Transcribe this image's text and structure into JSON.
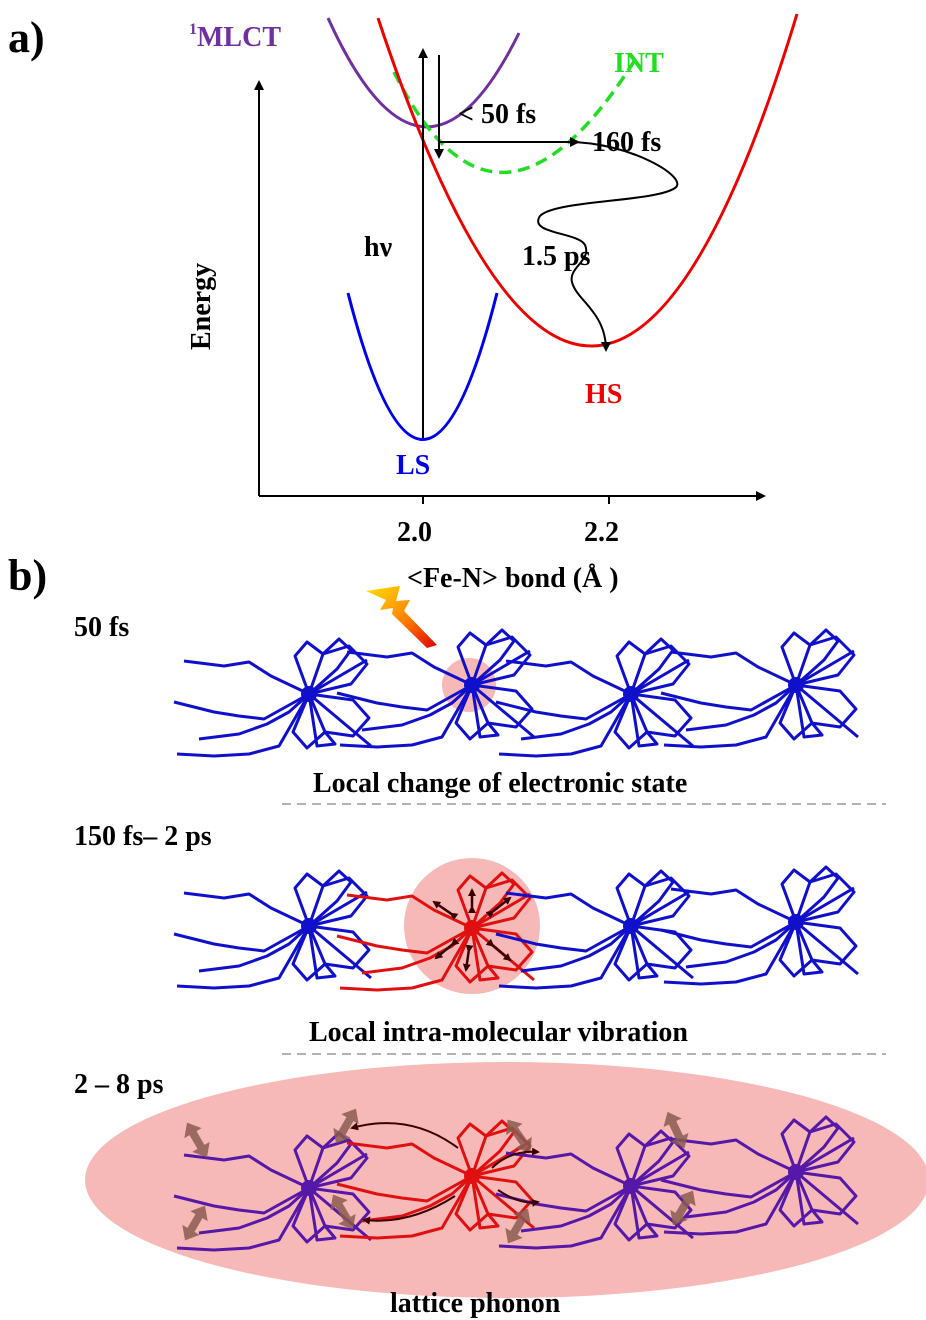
{
  "panel_a": {
    "label": "a)",
    "y_axis_label": "Energy",
    "x_axis_label": "<Fe-N> bond (Å )",
    "x_ticks": [
      "2.0",
      "2.2"
    ],
    "state_labels": {
      "mlct_sup": "1",
      "mlct": "MLCT",
      "int": "INT",
      "ls": "LS",
      "hs": "HS"
    },
    "process_labels": {
      "excitation": "hν",
      "t1": "< 50 fs",
      "t2": "160 fs",
      "t3": "1.5 ps"
    },
    "colors": {
      "mlct": "#7030a0",
      "int": "#22dd22",
      "ls": "#0000ee",
      "hs": "#ee0000",
      "axis": "#000000"
    }
  },
  "panel_b": {
    "label": "b)",
    "rows": [
      {
        "time": "50 fs",
        "caption": "Local change of electronic state"
      },
      {
        "time": "150 fs– 2 ps",
        "caption": "Local intra-molecular vibration"
      },
      {
        "time": "2 – 8 ps",
        "caption": "lattice phonon"
      }
    ],
    "colors": {
      "ls_molecule": "#1010cc",
      "hs_molecule": "#e01010",
      "phonon_molecule": "#5518a8",
      "highlight": "#f4a0a0",
      "divider": "#999999"
    }
  }
}
